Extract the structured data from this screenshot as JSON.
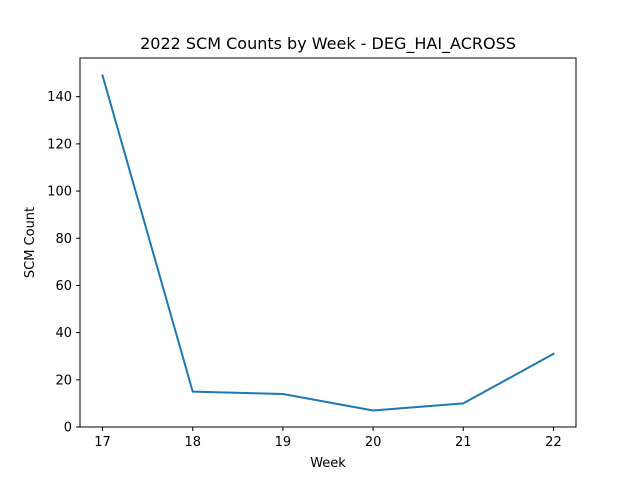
{
  "chart_data": {
    "type": "line",
    "title": "2022 SCM Counts by Week - DEG_HAI_ACROSS",
    "xlabel": "Week",
    "ylabel": "SCM Count",
    "x": [
      17,
      18,
      19,
      20,
      21,
      22
    ],
    "series": [
      {
        "values": [
          149,
          15,
          14,
          7,
          10,
          31
        ],
        "color": "#1f77b4"
      }
    ],
    "xticks": [
      17,
      18,
      19,
      20,
      21,
      22
    ],
    "yticks": [
      0,
      20,
      40,
      60,
      80,
      100,
      120,
      140
    ],
    "xlim": [
      16.75,
      22.25
    ],
    "ylim": [
      0,
      156.4
    ],
    "grid": false,
    "legend": "none"
  }
}
